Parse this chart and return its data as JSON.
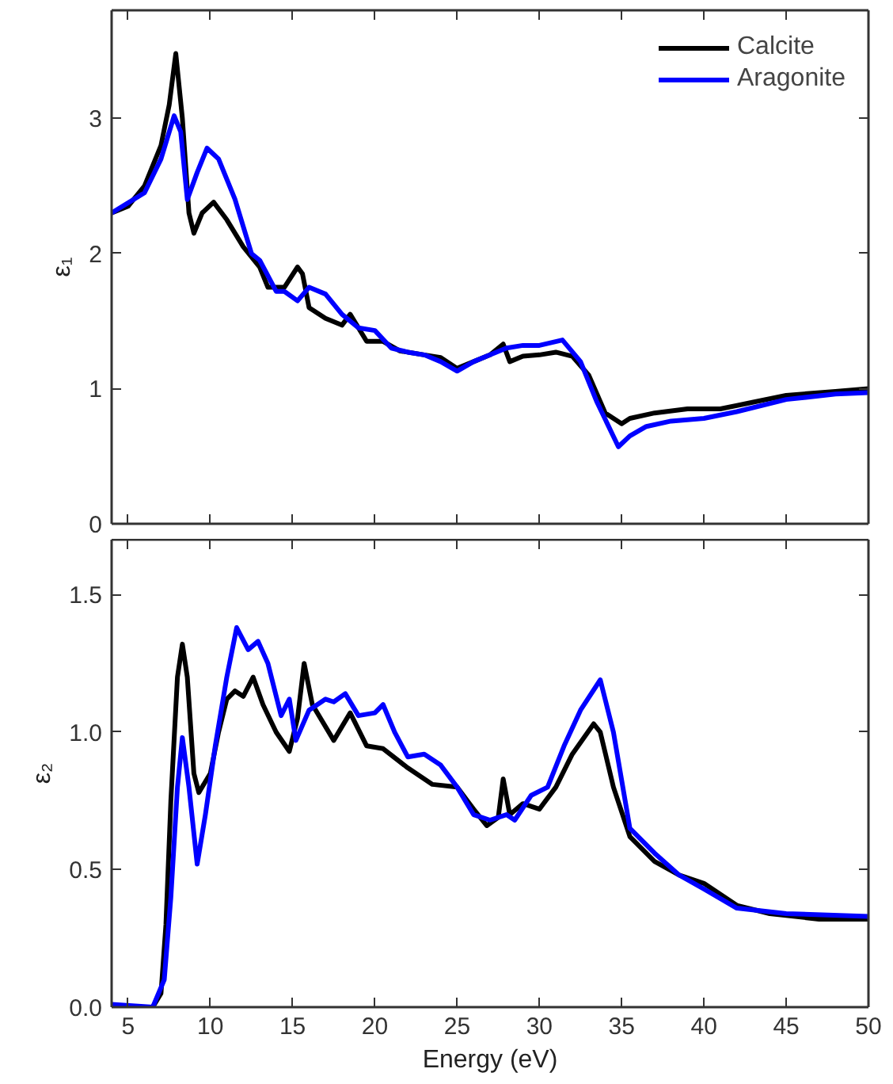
{
  "chart_data": [
    {
      "type": "line",
      "ylabel": "ε₁",
      "xlim": [
        4,
        50
      ],
      "xticks": [
        5,
        10,
        15,
        20,
        25,
        30,
        35,
        40,
        45,
        50
      ],
      "ylim": [
        0,
        3.8
      ],
      "yticks": [
        0,
        1,
        2,
        3
      ],
      "tick_labels": "y",
      "legend": "top right",
      "grid": false,
      "series": [
        {
          "name": "Calcite",
          "color": "#000000",
          "x": [
            4,
            5,
            6,
            7,
            7.5,
            7.9,
            8.3,
            8.7,
            9.0,
            9.5,
            10.2,
            11,
            12,
            13,
            13.5,
            14.5,
            15.3,
            15.6,
            16,
            17,
            18,
            18.5,
            19.5,
            20.5,
            21.5,
            23,
            24,
            25,
            26,
            27,
            27.8,
            28.2,
            29,
            30,
            31,
            32,
            33,
            34,
            35,
            35.5,
            37,
            39,
            41,
            43,
            45,
            48,
            50
          ],
          "values": [
            2.3,
            2.35,
            2.5,
            2.8,
            3.1,
            3.48,
            3.0,
            2.3,
            2.15,
            2.3,
            2.38,
            2.25,
            2.05,
            1.9,
            1.75,
            1.75,
            1.9,
            1.85,
            1.6,
            1.52,
            1.47,
            1.55,
            1.35,
            1.35,
            1.28,
            1.25,
            1.23,
            1.15,
            1.2,
            1.25,
            1.33,
            1.2,
            1.24,
            1.25,
            1.27,
            1.24,
            1.1,
            0.82,
            0.74,
            0.78,
            0.82,
            0.85,
            0.85,
            0.9,
            0.95,
            0.98,
            1.0
          ]
        },
        {
          "name": "Aragonite",
          "color": "#0000ff",
          "x": [
            4,
            6,
            7,
            7.8,
            8.2,
            8.6,
            9.2,
            9.8,
            10.5,
            11.5,
            12.5,
            13,
            14,
            14.5,
            15.3,
            16,
            17,
            18,
            19,
            20,
            21,
            22,
            23,
            24,
            25,
            26,
            27,
            28,
            29,
            30,
            31.4,
            32.5,
            33.5,
            34.8,
            35.5,
            36.5,
            38,
            40,
            42,
            45,
            48,
            50
          ],
          "values": [
            2.3,
            2.45,
            2.7,
            3.02,
            2.9,
            2.4,
            2.6,
            2.78,
            2.7,
            2.4,
            2.0,
            1.95,
            1.72,
            1.72,
            1.65,
            1.75,
            1.7,
            1.55,
            1.45,
            1.43,
            1.3,
            1.27,
            1.25,
            1.2,
            1.13,
            1.2,
            1.25,
            1.3,
            1.32,
            1.32,
            1.36,
            1.2,
            0.9,
            0.57,
            0.65,
            0.72,
            0.76,
            0.78,
            0.83,
            0.92,
            0.96,
            0.97
          ]
        }
      ]
    },
    {
      "type": "line",
      "xlabel": "Energy (eV)",
      "ylabel": "ε₂",
      "xlim": [
        4,
        50
      ],
      "xticks": [
        5,
        10,
        15,
        20,
        25,
        30,
        35,
        40,
        45,
        50
      ],
      "ylim": [
        0,
        1.7
      ],
      "yticks": [
        {
          "value": 0,
          "label": "0.0"
        },
        {
          "value": 0.5,
          "label": "0.5"
        },
        {
          "value": 1,
          "label": "1.0"
        },
        {
          "value": 1.5,
          "label": "1.5"
        }
      ],
      "grid": false,
      "series": [
        {
          "color": "#000000",
          "x": [
            4,
            6.5,
            7,
            7.3,
            7.6,
            8.0,
            8.3,
            8.6,
            9.0,
            9.3,
            10,
            10.5,
            11,
            11.5,
            12,
            12.6,
            13.2,
            14,
            14.8,
            15.3,
            15.7,
            16.2,
            17.5,
            18.5,
            19.5,
            20.5,
            22,
            23.5,
            25,
            26,
            26.8,
            27.5,
            27.8,
            28.2,
            29,
            30,
            31,
            32,
            33.3,
            33.7,
            34.5,
            35.5,
            37,
            38.5,
            40,
            42,
            44,
            47,
            50
          ],
          "values": [
            0.0,
            0.0,
            0.05,
            0.3,
            0.75,
            1.2,
            1.32,
            1.2,
            0.85,
            0.78,
            0.85,
            1.0,
            1.12,
            1.15,
            1.13,
            1.2,
            1.1,
            1.0,
            0.93,
            1.05,
            1.25,
            1.1,
            0.97,
            1.07,
            0.95,
            0.94,
            0.87,
            0.81,
            0.8,
            0.72,
            0.66,
            0.69,
            0.83,
            0.7,
            0.74,
            0.72,
            0.8,
            0.92,
            1.03,
            1.0,
            0.8,
            0.62,
            0.53,
            0.48,
            0.45,
            0.37,
            0.34,
            0.32,
            0.32
          ]
        },
        {
          "color": "#0000ff",
          "x": [
            4,
            6.5,
            7.2,
            7.6,
            8.0,
            8.3,
            8.7,
            9.2,
            9.7,
            10.3,
            11,
            11.6,
            12.3,
            12.9,
            13.5,
            14.3,
            14.8,
            15.2,
            16,
            17,
            17.5,
            18.2,
            19,
            20,
            20.5,
            21.2,
            22,
            23,
            24,
            25,
            26,
            27,
            28,
            28.5,
            29.5,
            30.5,
            31.5,
            32.5,
            33.7,
            34.5,
            35.5,
            37,
            38.5,
            40,
            42,
            45,
            50
          ],
          "values": [
            0.01,
            0.0,
            0.1,
            0.4,
            0.8,
            0.98,
            0.8,
            0.52,
            0.7,
            0.95,
            1.2,
            1.38,
            1.3,
            1.33,
            1.25,
            1.06,
            1.12,
            0.97,
            1.08,
            1.12,
            1.11,
            1.14,
            1.06,
            1.07,
            1.1,
            1.0,
            0.91,
            0.92,
            0.88,
            0.8,
            0.7,
            0.68,
            0.7,
            0.68,
            0.77,
            0.8,
            0.95,
            1.08,
            1.19,
            1.0,
            0.65,
            0.56,
            0.48,
            0.43,
            0.36,
            0.34,
            0.33
          ]
        }
      ]
    }
  ]
}
